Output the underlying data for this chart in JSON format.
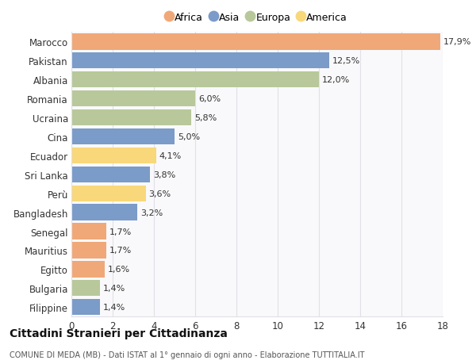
{
  "countries": [
    "Marocco",
    "Pakistan",
    "Albania",
    "Romania",
    "Ucraina",
    "Cina",
    "Ecuador",
    "Sri Lanka",
    "Perù",
    "Bangladesh",
    "Senegal",
    "Mauritius",
    "Egitto",
    "Bulgaria",
    "Filippine"
  ],
  "values": [
    17.9,
    12.5,
    12.0,
    6.0,
    5.8,
    5.0,
    4.1,
    3.8,
    3.6,
    3.2,
    1.7,
    1.7,
    1.6,
    1.4,
    1.4
  ],
  "continents": [
    "Africa",
    "Asia",
    "Europa",
    "Europa",
    "Europa",
    "Asia",
    "America",
    "Asia",
    "America",
    "Asia",
    "Africa",
    "Africa",
    "Africa",
    "Europa",
    "Asia"
  ],
  "colors": {
    "Africa": "#F0A878",
    "Asia": "#7B9BC8",
    "Europa": "#B8C89A",
    "America": "#F8D87A"
  },
  "legend_order": [
    "Africa",
    "Asia",
    "Europa",
    "America"
  ],
  "title": "Cittadini Stranieri per Cittadinanza",
  "subtitle": "COMUNE DI MEDA (MB) - Dati ISTAT al 1° gennaio di ogni anno - Elaborazione TUTTITALIA.IT",
  "xlim": [
    0,
    18
  ],
  "xticks": [
    0,
    2,
    4,
    6,
    8,
    10,
    12,
    14,
    16,
    18
  ],
  "bg_color": "#ffffff",
  "plot_bg_color": "#f9f9fb",
  "grid_color": "#e0e0e8"
}
